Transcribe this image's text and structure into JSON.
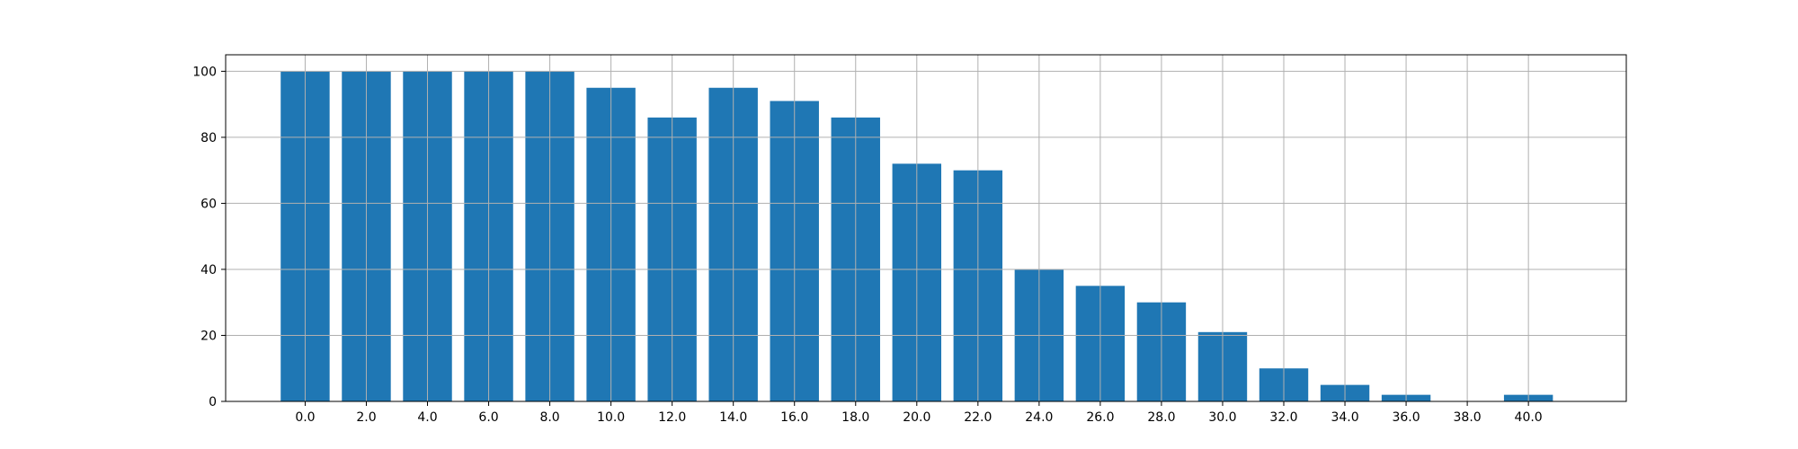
{
  "chart_data": {
    "type": "bar",
    "categories": [
      "0.0",
      "2.0",
      "4.0",
      "6.0",
      "8.0",
      "10.0",
      "12.0",
      "14.0",
      "16.0",
      "18.0",
      "20.0",
      "22.0",
      "24.0",
      "26.0",
      "28.0",
      "30.0",
      "32.0",
      "34.0",
      "36.0",
      "38.0",
      "40.0"
    ],
    "x": [
      0,
      2,
      4,
      6,
      8,
      10,
      12,
      14,
      16,
      18,
      20,
      22,
      24,
      26,
      28,
      30,
      32,
      34,
      36,
      38,
      40
    ],
    "values": [
      100,
      100,
      100,
      100,
      100,
      95,
      86,
      95,
      91,
      86,
      72,
      70,
      40,
      35,
      30,
      21,
      10,
      5,
      2,
      0,
      2
    ],
    "yticks": [
      0,
      20,
      40,
      60,
      80,
      100
    ],
    "ytick_labels": [
      "0",
      "20",
      "40",
      "60",
      "80",
      "100"
    ],
    "xlim": [
      -2.6,
      43.2
    ],
    "ylim": [
      0,
      105
    ],
    "bar_width": 1.6,
    "grid": true,
    "title": "",
    "xlabel": "",
    "ylabel": "",
    "colors": {
      "bar": "#1f77b4",
      "grid": "#b0b0b0",
      "axes": "#000000"
    }
  }
}
